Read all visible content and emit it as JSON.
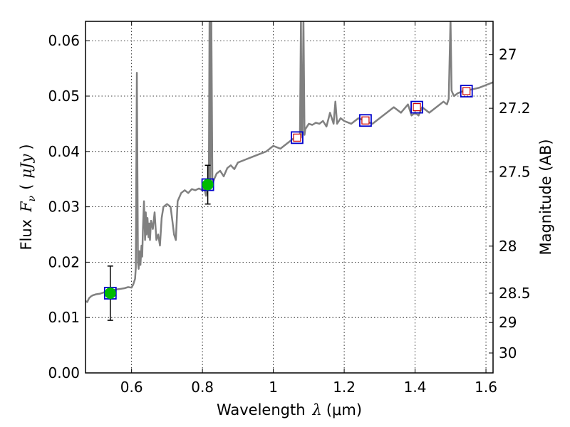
{
  "chart_data": {
    "type": "line",
    "title": "",
    "xlabel_text": "Wavelength",
    "xlabel_symbol": "λ",
    "xlabel_unit": "(μm)",
    "ylabel_text": "Flux",
    "ylabel_symbol": "F",
    "ylabel_subscript": "ν",
    "ylabel_unit": "μJy",
    "y2label": "Magnitude (AB)",
    "xlim": [
      0.47,
      1.62
    ],
    "ylim": [
      0.0,
      0.0635
    ],
    "grid": true,
    "x_ticks": [
      0.6,
      0.8,
      1.0,
      1.2,
      1.4,
      1.6
    ],
    "x_tick_labels": [
      "0.6",
      "0.8",
      "1",
      "1.2",
      "1.4",
      "1.6"
    ],
    "y_ticks": [
      0.0,
      0.01,
      0.02,
      0.03,
      0.04,
      0.05,
      0.06
    ],
    "y_tick_labels": [
      "0.00",
      "0.01",
      "0.02",
      "0.03",
      "0.04",
      "0.05",
      "0.06"
    ],
    "y2_tick_labels": [
      "27",
      "27.2",
      "27.5",
      "28",
      "28.5",
      "29",
      "30"
    ],
    "y2_tick_flux": [
      0.0575,
      0.0478,
      0.0363,
      0.0229,
      0.0144,
      0.0091,
      0.0036
    ],
    "colors": {
      "model": "#808080",
      "observed": "#00bb00",
      "synthetic_box": "#0000cc",
      "synthetic_inner": "#cc0000",
      "errorbar": "#000000"
    },
    "series": [
      {
        "kind": "model-spectrum",
        "x": [
          0.47,
          0.475,
          0.48,
          0.485,
          0.49,
          0.5,
          0.51,
          0.52,
          0.53,
          0.54,
          0.55,
          0.56,
          0.57,
          0.58,
          0.59,
          0.6,
          0.605,
          0.61,
          0.612,
          0.615,
          0.618,
          0.62,
          0.622,
          0.625,
          0.628,
          0.63,
          0.632,
          0.635,
          0.638,
          0.64,
          0.642,
          0.645,
          0.648,
          0.65,
          0.652,
          0.655,
          0.66,
          0.665,
          0.67,
          0.675,
          0.68,
          0.685,
          0.69,
          0.7,
          0.71,
          0.715,
          0.72,
          0.725,
          0.73,
          0.74,
          0.75,
          0.76,
          0.77,
          0.78,
          0.79,
          0.8,
          0.805,
          0.81,
          0.815,
          0.818,
          0.82,
          0.822,
          0.825,
          0.828,
          0.83,
          0.833,
          0.84,
          0.85,
          0.86,
          0.87,
          0.88,
          0.89,
          0.9,
          0.92,
          0.94,
          0.96,
          0.98,
          1.0,
          1.02,
          1.04,
          1.05,
          1.06,
          1.07,
          1.075,
          1.078,
          1.08,
          1.082,
          1.085,
          1.088,
          1.09,
          1.095,
          1.1,
          1.11,
          1.12,
          1.13,
          1.14,
          1.15,
          1.16,
          1.17,
          1.175,
          1.18,
          1.19,
          1.2,
          1.22,
          1.24,
          1.26,
          1.28,
          1.3,
          1.32,
          1.34,
          1.36,
          1.38,
          1.39,
          1.4,
          1.41,
          1.42,
          1.43,
          1.44,
          1.46,
          1.48,
          1.49,
          1.495,
          1.5,
          1.503,
          1.506,
          1.51,
          1.52,
          1.54,
          1.56,
          1.58,
          1.6,
          1.62
        ],
        "y": [
          0.013,
          0.0128,
          0.0135,
          0.0138,
          0.014,
          0.0142,
          0.0143,
          0.0145,
          0.0147,
          0.0148,
          0.015,
          0.0151,
          0.0152,
          0.0153,
          0.0155,
          0.0154,
          0.016,
          0.017,
          0.019,
          0.0542,
          0.02,
          0.0188,
          0.022,
          0.0195,
          0.023,
          0.021,
          0.026,
          0.031,
          0.024,
          0.029,
          0.025,
          0.028,
          0.0245,
          0.027,
          0.024,
          0.0275,
          0.026,
          0.029,
          0.024,
          0.025,
          0.023,
          0.028,
          0.03,
          0.0305,
          0.03,
          0.0275,
          0.025,
          0.024,
          0.031,
          0.0325,
          0.033,
          0.0325,
          0.0332,
          0.033,
          0.0333,
          0.033,
          0.0335,
          0.032,
          0.0335,
          0.034,
          0.064,
          0.034,
          0.064,
          0.0342,
          0.0345,
          0.035,
          0.036,
          0.0365,
          0.0355,
          0.037,
          0.0375,
          0.0368,
          0.038,
          0.0385,
          0.039,
          0.0395,
          0.04,
          0.041,
          0.0405,
          0.0415,
          0.042,
          0.0425,
          0.043,
          0.042,
          0.064,
          0.044,
          0.0425,
          0.064,
          0.043,
          0.044,
          0.0445,
          0.045,
          0.0448,
          0.0452,
          0.045,
          0.0455,
          0.0445,
          0.047,
          0.045,
          0.049,
          0.045,
          0.046,
          0.0455,
          0.045,
          0.046,
          0.0455,
          0.045,
          0.046,
          0.047,
          0.048,
          0.047,
          0.0485,
          0.0465,
          0.047,
          0.0465,
          0.048,
          0.0475,
          0.047,
          0.048,
          0.049,
          0.0485,
          0.0495,
          0.064,
          0.051,
          0.0505,
          0.05,
          0.0505,
          0.051,
          0.0512,
          0.0515,
          0.052,
          0.0525
        ]
      },
      {
        "kind": "synthetic-photometry",
        "x": [
          0.54,
          0.815,
          1.067,
          1.26,
          1.405,
          1.545
        ],
        "y": [
          0.0144,
          0.034,
          0.0425,
          0.0456,
          0.048,
          0.0509
        ]
      },
      {
        "kind": "observed-photometry",
        "x": [
          0.54,
          0.815
        ],
        "y": [
          0.0144,
          0.034
        ],
        "yerr": [
          0.0049,
          0.0035
        ]
      }
    ]
  }
}
